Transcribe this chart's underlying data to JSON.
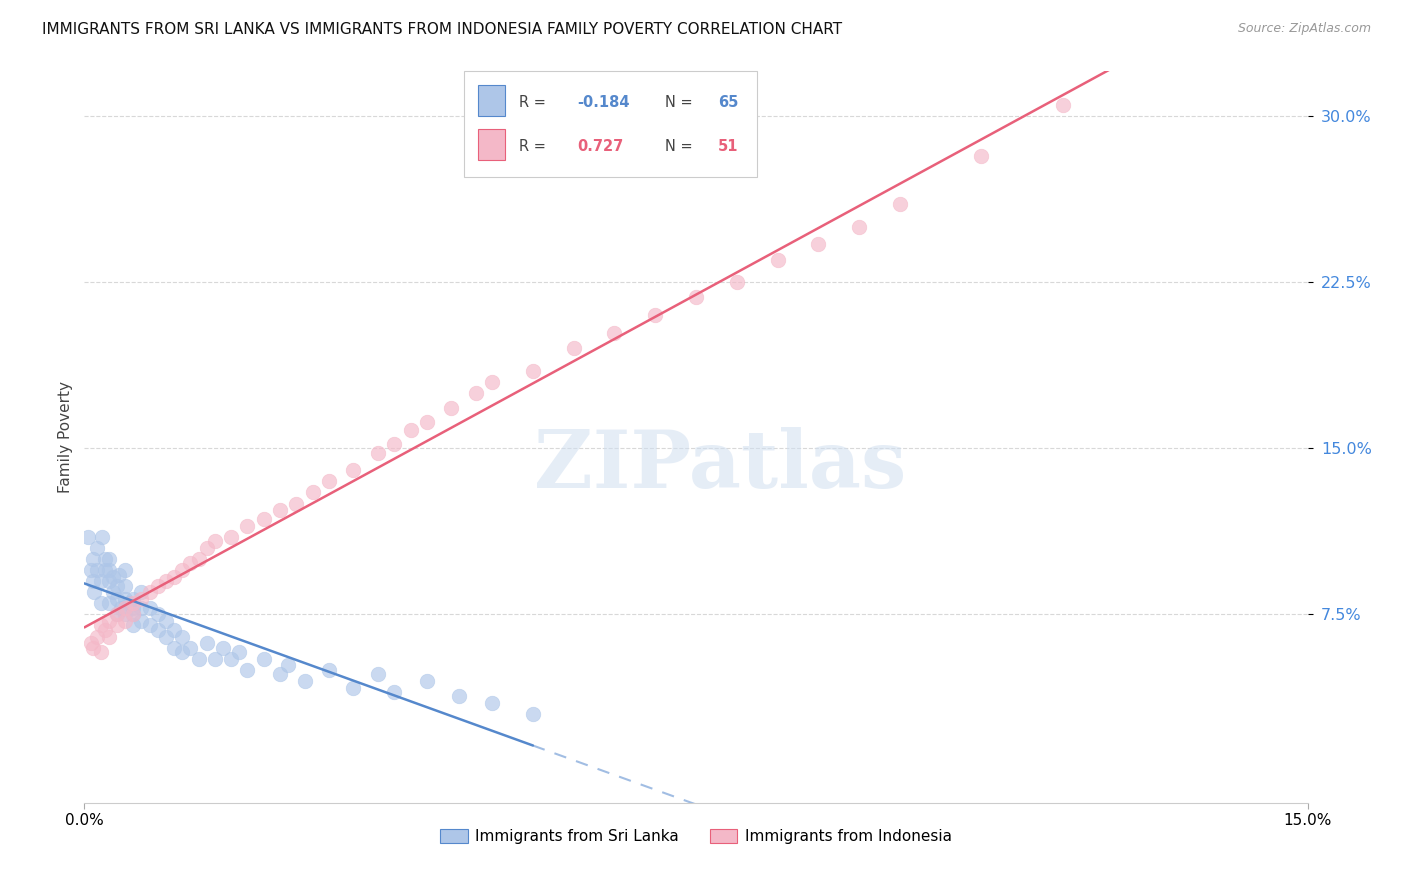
{
  "title": "IMMIGRANTS FROM SRI LANKA VS IMMIGRANTS FROM INDONESIA FAMILY POVERTY CORRELATION CHART",
  "source": "Source: ZipAtlas.com",
  "ylabel": "Family Poverty",
  "ytick_vals": [
    0.075,
    0.15,
    0.225,
    0.3
  ],
  "ytick_labels": [
    "7.5%",
    "15.0%",
    "22.5%",
    "30.0%"
  ],
  "xtick_vals": [
    0.0,
    0.15
  ],
  "xtick_labels": [
    "0.0%",
    "15.0%"
  ],
  "xlim": [
    0.0,
    0.15
  ],
  "ylim": [
    -0.01,
    0.32
  ],
  "legend_label1": "Immigrants from Sri Lanka",
  "legend_label2": "Immigrants from Indonesia",
  "R1": "-0.184",
  "N1": "65",
  "R2": "0.727",
  "N2": "51",
  "color_sri_lanka": "#aec6e8",
  "color_indonesia": "#f4b8c8",
  "color_line_sri_lanka": "#5588cc",
  "color_line_indonesia": "#e8607a",
  "watermark": "ZIPatlas",
  "background_color": "#ffffff",
  "grid_color": "#d8d8d8",
  "sri_lanka_x": [
    0.0005,
    0.0008,
    0.001,
    0.001,
    0.0012,
    0.0015,
    0.0015,
    0.002,
    0.002,
    0.0022,
    0.0025,
    0.0025,
    0.003,
    0.003,
    0.003,
    0.003,
    0.0035,
    0.0035,
    0.004,
    0.004,
    0.004,
    0.0042,
    0.0045,
    0.005,
    0.005,
    0.005,
    0.005,
    0.0055,
    0.006,
    0.006,
    0.006,
    0.006,
    0.007,
    0.007,
    0.007,
    0.008,
    0.008,
    0.009,
    0.009,
    0.01,
    0.01,
    0.011,
    0.011,
    0.012,
    0.012,
    0.013,
    0.014,
    0.015,
    0.016,
    0.017,
    0.018,
    0.019,
    0.02,
    0.022,
    0.024,
    0.025,
    0.027,
    0.03,
    0.033,
    0.036,
    0.038,
    0.042,
    0.046,
    0.05,
    0.055
  ],
  "sri_lanka_y": [
    0.11,
    0.095,
    0.09,
    0.1,
    0.085,
    0.095,
    0.105,
    0.08,
    0.09,
    0.11,
    0.095,
    0.1,
    0.08,
    0.09,
    0.095,
    0.1,
    0.085,
    0.092,
    0.075,
    0.082,
    0.088,
    0.093,
    0.078,
    0.075,
    0.082,
    0.088,
    0.095,
    0.08,
    0.075,
    0.082,
    0.07,
    0.078,
    0.072,
    0.078,
    0.085,
    0.07,
    0.078,
    0.068,
    0.075,
    0.065,
    0.072,
    0.06,
    0.068,
    0.058,
    0.065,
    0.06,
    0.055,
    0.062,
    0.055,
    0.06,
    0.055,
    0.058,
    0.05,
    0.055,
    0.048,
    0.052,
    0.045,
    0.05,
    0.042,
    0.048,
    0.04,
    0.045,
    0.038,
    0.035,
    0.03
  ],
  "indonesia_x": [
    0.0008,
    0.001,
    0.0015,
    0.002,
    0.002,
    0.0025,
    0.003,
    0.003,
    0.004,
    0.004,
    0.005,
    0.005,
    0.006,
    0.006,
    0.007,
    0.008,
    0.009,
    0.01,
    0.011,
    0.012,
    0.013,
    0.014,
    0.015,
    0.016,
    0.018,
    0.02,
    0.022,
    0.024,
    0.026,
    0.028,
    0.03,
    0.033,
    0.036,
    0.038,
    0.04,
    0.042,
    0.045,
    0.048,
    0.05,
    0.055,
    0.06,
    0.065,
    0.07,
    0.075,
    0.08,
    0.085,
    0.09,
    0.095,
    0.1,
    0.11,
    0.12
  ],
  "indonesia_y": [
    0.062,
    0.06,
    0.065,
    0.058,
    0.07,
    0.068,
    0.065,
    0.072,
    0.07,
    0.075,
    0.072,
    0.078,
    0.075,
    0.08,
    0.082,
    0.085,
    0.088,
    0.09,
    0.092,
    0.095,
    0.098,
    0.1,
    0.105,
    0.108,
    0.11,
    0.115,
    0.118,
    0.122,
    0.125,
    0.13,
    0.135,
    0.14,
    0.148,
    0.152,
    0.158,
    0.162,
    0.168,
    0.175,
    0.18,
    0.185,
    0.195,
    0.202,
    0.21,
    0.218,
    0.225,
    0.235,
    0.242,
    0.25,
    0.26,
    0.282,
    0.305
  ]
}
